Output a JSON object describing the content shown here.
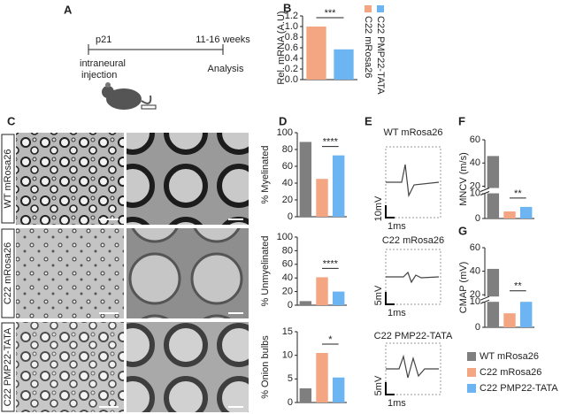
{
  "panel_labels": [
    "A",
    "B",
    "C",
    "D",
    "E",
    "F",
    "G"
  ],
  "timeline": {
    "start": "p21",
    "end": "11-16 weeks",
    "start_note": [
      "intraneural",
      "injection"
    ],
    "end_note": "Analysis"
  },
  "micrographs": {
    "rows": [
      "WT mRosa26",
      "C22 mRosa26",
      "C22 PMP22-TATA"
    ]
  },
  "traces": [
    {
      "title": "WT mRosa26",
      "amplitude_scale": "10mV",
      "time_scale": "1ms"
    },
    {
      "title": "C22 mRosa26",
      "amplitude_scale": "5mV",
      "time_scale": "1ms"
    },
    {
      "title": "C22 PMP22-TATA",
      "amplitude_scale": "5mV",
      "time_scale": "1ms"
    }
  ],
  "legend": {
    "names": [
      "WT mRosa26",
      "C22 mRosa26",
      "C22 PMP22-TATA"
    ],
    "colors": [
      "#7f7f7f",
      "#f4a582",
      "#6cb4f2"
    ]
  },
  "chart_data": [
    {
      "type": "bar",
      "ylabel": "Rel. mRNA (A.U)",
      "categories": [
        "C22 mRosa26",
        "C22 PMP22-TATA"
      ],
      "values": [
        1.0,
        0.57
      ],
      "colors": [
        "#f4a582",
        "#6cb4f2"
      ],
      "ylim": [
        0,
        1.2
      ],
      "yticks": [
        {
          "value": 0,
          "label": "0.0"
        },
        0.2,
        0.4,
        0.6,
        0.8,
        {
          "value": 1,
          "label": "1.0"
        },
        1.2
      ],
      "significance": "***"
    },
    {
      "type": "bar",
      "ylabel": "% Myelinated",
      "values": [
        89,
        45,
        73
      ],
      "colors": [
        "#7f7f7f",
        "#f4a582",
        "#6cb4f2"
      ],
      "ylim": [
        0,
        100
      ],
      "yticks": [
        0,
        20,
        40,
        60,
        80,
        100
      ],
      "significance": "****"
    },
    {
      "type": "bar",
      "ylabel": "% Unmyelinated",
      "values": [
        6,
        41,
        20
      ],
      "colors": [
        "#7f7f7f",
        "#f4a582",
        "#6cb4f2"
      ],
      "ylim": [
        0,
        100
      ],
      "yticks": [
        0,
        20,
        40,
        60,
        80,
        100
      ],
      "significance": "****"
    },
    {
      "type": "bar",
      "ylabel": "% Onion bulbs",
      "values": [
        3,
        10.5,
        5.3
      ],
      "colors": [
        "#7f7f7f",
        "#f4a582",
        "#6cb4f2"
      ],
      "ylim": [
        0,
        15
      ],
      "yticks": [
        0,
        5,
        10,
        15
      ],
      "significance": "*"
    },
    {
      "type": "bar",
      "ylabel": "MNCV (m/s)",
      "values": [
        46,
        2.8,
        4.6
      ],
      "colors": [
        "#7f7f7f",
        "#f4a582",
        "#6cb4f2"
      ],
      "ylim": [
        0,
        60
      ],
      "axis_break": [
        10,
        20
      ],
      "yticks": [
        0,
        10,
        20,
        40,
        60
      ],
      "significance": "**"
    },
    {
      "type": "bar",
      "ylabel": "CMAP (mV)",
      "values": [
        42,
        5.5,
        13
      ],
      "colors": [
        "#7f7f7f",
        "#f4a582",
        "#6cb4f2"
      ],
      "ylim": [
        0,
        60
      ],
      "axis_break": [
        10,
        20
      ],
      "yticks": [
        0,
        10,
        20,
        40,
        60
      ],
      "significance": "**"
    }
  ]
}
